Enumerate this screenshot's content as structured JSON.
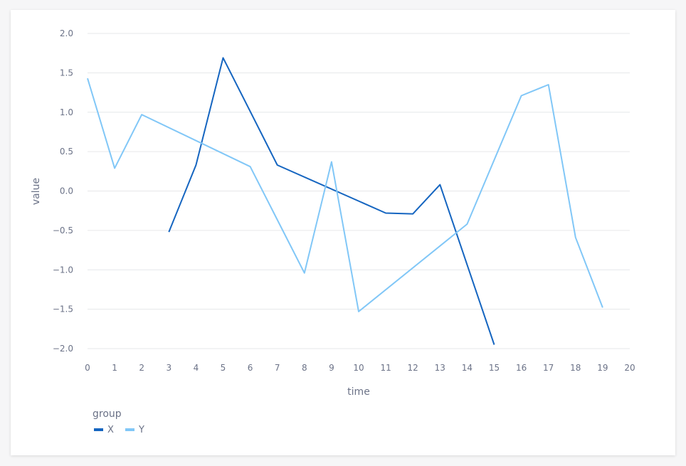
{
  "chart_data": {
    "type": "line",
    "xlabel": "time",
    "ylabel": "value",
    "xlim": [
      0,
      20
    ],
    "ylim": [
      -2.0,
      2.0
    ],
    "x_ticks": [
      0,
      1,
      2,
      3,
      4,
      5,
      6,
      7,
      8,
      9,
      10,
      11,
      12,
      13,
      14,
      15,
      16,
      17,
      18,
      19,
      20
    ],
    "y_ticks": [
      2.0,
      1.5,
      1.0,
      0.5,
      0.0,
      -0.5,
      -1.0,
      -1.5,
      -2.0
    ],
    "y_tick_labels": [
      "2.0",
      "1.5",
      "1.0",
      "0.5",
      "0.0",
      "−0.5",
      "−1.0",
      "−1.5",
      "−2.0"
    ],
    "grid": "horizontal",
    "legend": {
      "title": "group",
      "placement": "bottom-left"
    },
    "series": [
      {
        "name": "X",
        "color": "#1565c0",
        "points": [
          [
            3,
            -0.52
          ],
          [
            4,
            0.33
          ],
          [
            5,
            1.69
          ],
          [
            6,
            1.01
          ],
          [
            7,
            0.33
          ],
          [
            11,
            -0.28
          ],
          [
            12,
            -0.29
          ],
          [
            13,
            0.08
          ],
          [
            15,
            -1.95
          ]
        ]
      },
      {
        "name": "Y",
        "color": "#81c7f7",
        "points": [
          [
            0,
            1.43
          ],
          [
            1,
            0.29
          ],
          [
            2,
            0.97
          ],
          [
            6,
            0.31
          ],
          [
            8,
            -1.04
          ],
          [
            9,
            0.37
          ],
          [
            10,
            -1.53
          ],
          [
            14,
            -0.42
          ],
          [
            16,
            1.21
          ],
          [
            17,
            1.35
          ],
          [
            18,
            -0.59
          ],
          [
            19,
            -1.48
          ]
        ]
      }
    ]
  }
}
